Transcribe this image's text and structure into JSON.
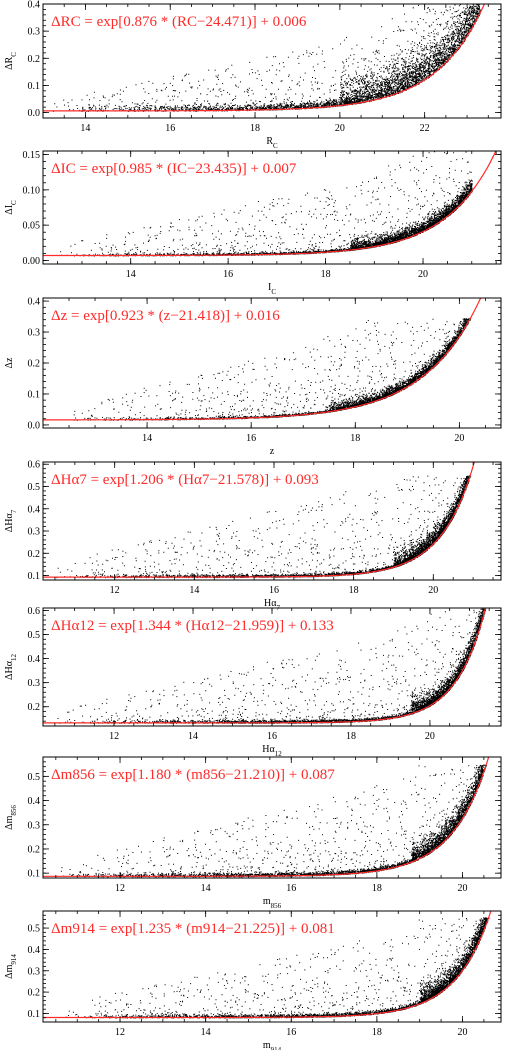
{
  "figure": {
    "colors": {
      "axes": "#000000",
      "points": "#000000",
      "fit": "#ff2a2a"
    }
  },
  "chart_data": [
    {
      "type": "scatter",
      "ylabel_main": "ΔR",
      "ylabel_sub": "C",
      "xlabel_main": "R",
      "xlabel_sub": "C",
      "equation": "ΔRC = exp[0.876 * (RC−24.471)] + 0.006",
      "fit": {
        "a": 0.876,
        "x0": 24.471,
        "c": 0.006
      },
      "xlim": [
        13.0,
        23.8
      ],
      "ylim": [
        -0.02,
        0.4
      ],
      "xticks": [
        14,
        16,
        18,
        20,
        22
      ],
      "yticks": [
        0.0,
        0.1,
        0.2,
        0.3,
        0.4
      ],
      "ytick_decimals": 1,
      "scatter": {
        "x_start": 13.2,
        "x_end": 23.3,
        "x_dense_start": 20.0,
        "band_offset": 0.08,
        "cloud": 0.3
      }
    },
    {
      "type": "scatter",
      "ylabel_main": "ΔI",
      "ylabel_sub": "C",
      "xlabel_main": "I",
      "xlabel_sub": "C",
      "equation": "ΔIC = exp[0.985 * (IC−23.435)] + 0.007",
      "fit": {
        "a": 0.985,
        "x0": 23.435,
        "c": 0.007
      },
      "xlim": [
        12.2,
        21.6
      ],
      "ylim": [
        -0.005,
        0.155
      ],
      "xticks": [
        14,
        16,
        18,
        20
      ],
      "yticks": [
        0.0,
        0.05,
        0.1,
        0.15
      ],
      "ytick_decimals": 2,
      "scatter": {
        "x_start": 12.5,
        "x_end": 21.0,
        "x_dense_start": 18.5,
        "band_offset": 0.01,
        "cloud": 0.12
      }
    },
    {
      "type": "scatter",
      "ylabel_main": "Δz",
      "ylabel_sub": "",
      "xlabel_main": "z",
      "xlabel_sub": "",
      "equation": "Δz = exp[0.923 * (z−21.418)] + 0.016",
      "fit": {
        "a": 0.923,
        "x0": 21.418,
        "c": 0.016
      },
      "xlim": [
        12.0,
        20.8
      ],
      "ylim": [
        -0.01,
        0.41
      ],
      "xticks": [
        14,
        16,
        18,
        20
      ],
      "yticks": [
        0.0,
        0.1,
        0.2,
        0.3,
        0.4
      ],
      "ytick_decimals": 1,
      "scatter": {
        "x_start": 12.5,
        "x_end": 20.4,
        "x_dense_start": 17.5,
        "band_offset": 0.02,
        "cloud": 0.32,
        "ycap": 0.345
      }
    },
    {
      "type": "scatter",
      "ylabel_main": "ΔHα",
      "ylabel_sub": "7",
      "xlabel_main": "Hα",
      "xlabel_sub": "7",
      "equation": "ΔHα7 = exp[1.206 * (Hα7−21.578)] + 0.093",
      "fit": {
        "a": 1.206,
        "x0": 21.578,
        "c": 0.093
      },
      "xlim": [
        10.2,
        21.7
      ],
      "ylim": [
        0.08,
        0.61
      ],
      "xticks": [
        12,
        14,
        16,
        18,
        20
      ],
      "yticks": [
        0.1,
        0.2,
        0.3,
        0.4,
        0.5,
        0.6
      ],
      "ytick_decimals": 1,
      "scatter": {
        "x_start": 10.5,
        "x_end": 21.1,
        "x_dense_start": 19.0,
        "band_offset": 0.04,
        "cloud": 0.45,
        "ycap": 0.55
      }
    },
    {
      "type": "scatter",
      "ylabel_main": "ΔHα",
      "ylabel_sub": "12",
      "xlabel_main": "Hα",
      "xlabel_sub": "12",
      "equation": "ΔHα12 = exp[1.344 * (Hα12−21.959)] + 0.133",
      "fit": {
        "a": 1.344,
        "x0": 21.959,
        "c": 0.133
      },
      "xlim": [
        10.2,
        21.8
      ],
      "ylim": [
        0.12,
        0.61
      ],
      "xticks": [
        12,
        14,
        16,
        18,
        20
      ],
      "yticks": [
        0.2,
        0.3,
        0.4,
        0.5,
        0.6
      ],
      "ytick_decimals": 1,
      "scatter": {
        "x_start": 10.5,
        "x_end": 21.6,
        "x_dense_start": 19.5,
        "band_offset": 0.04,
        "cloud": 0.4
      }
    },
    {
      "type": "scatter",
      "ylabel_main": "Δm",
      "ylabel_sub": "856",
      "xlabel_main": "m",
      "xlabel_sub": "856",
      "equation": "Δm856 = exp[1.180 * (m856−21.210)] + 0.087",
      "fit": {
        "a": 1.18,
        "x0": 21.21,
        "c": 0.087
      },
      "xlim": [
        10.2,
        20.9
      ],
      "ylim": [
        0.08,
        0.58
      ],
      "xticks": [
        12,
        14,
        16,
        18,
        20
      ],
      "yticks": [
        0.1,
        0.2,
        0.3,
        0.4,
        0.5
      ],
      "ytick_decimals": 1,
      "scatter": {
        "x_start": 10.5,
        "x_end": 20.8,
        "x_dense_start": 18.8,
        "band_offset": 0.05,
        "cloud": 0.42,
        "ycap": 0.55
      }
    },
    {
      "type": "scatter",
      "ylabel_main": "Δm",
      "ylabel_sub": "914",
      "xlabel_main": "m",
      "xlabel_sub": "914",
      "equation": "Δm914 = exp[1.235 * (m914−21.225)] + 0.081",
      "fit": {
        "a": 1.235,
        "x0": 21.225,
        "c": 0.081
      },
      "xlim": [
        10.2,
        20.9
      ],
      "ylim": [
        0.06,
        0.58
      ],
      "xticks": [
        12,
        14,
        16,
        18,
        20
      ],
      "yticks": [
        0.1,
        0.2,
        0.3,
        0.4,
        0.5
      ],
      "ytick_decimals": 1,
      "scatter": {
        "x_start": 10.5,
        "x_end": 20.8,
        "x_dense_start": 19.0,
        "band_offset": 0.05,
        "cloud": 0.42,
        "ycap": 0.55
      }
    }
  ]
}
